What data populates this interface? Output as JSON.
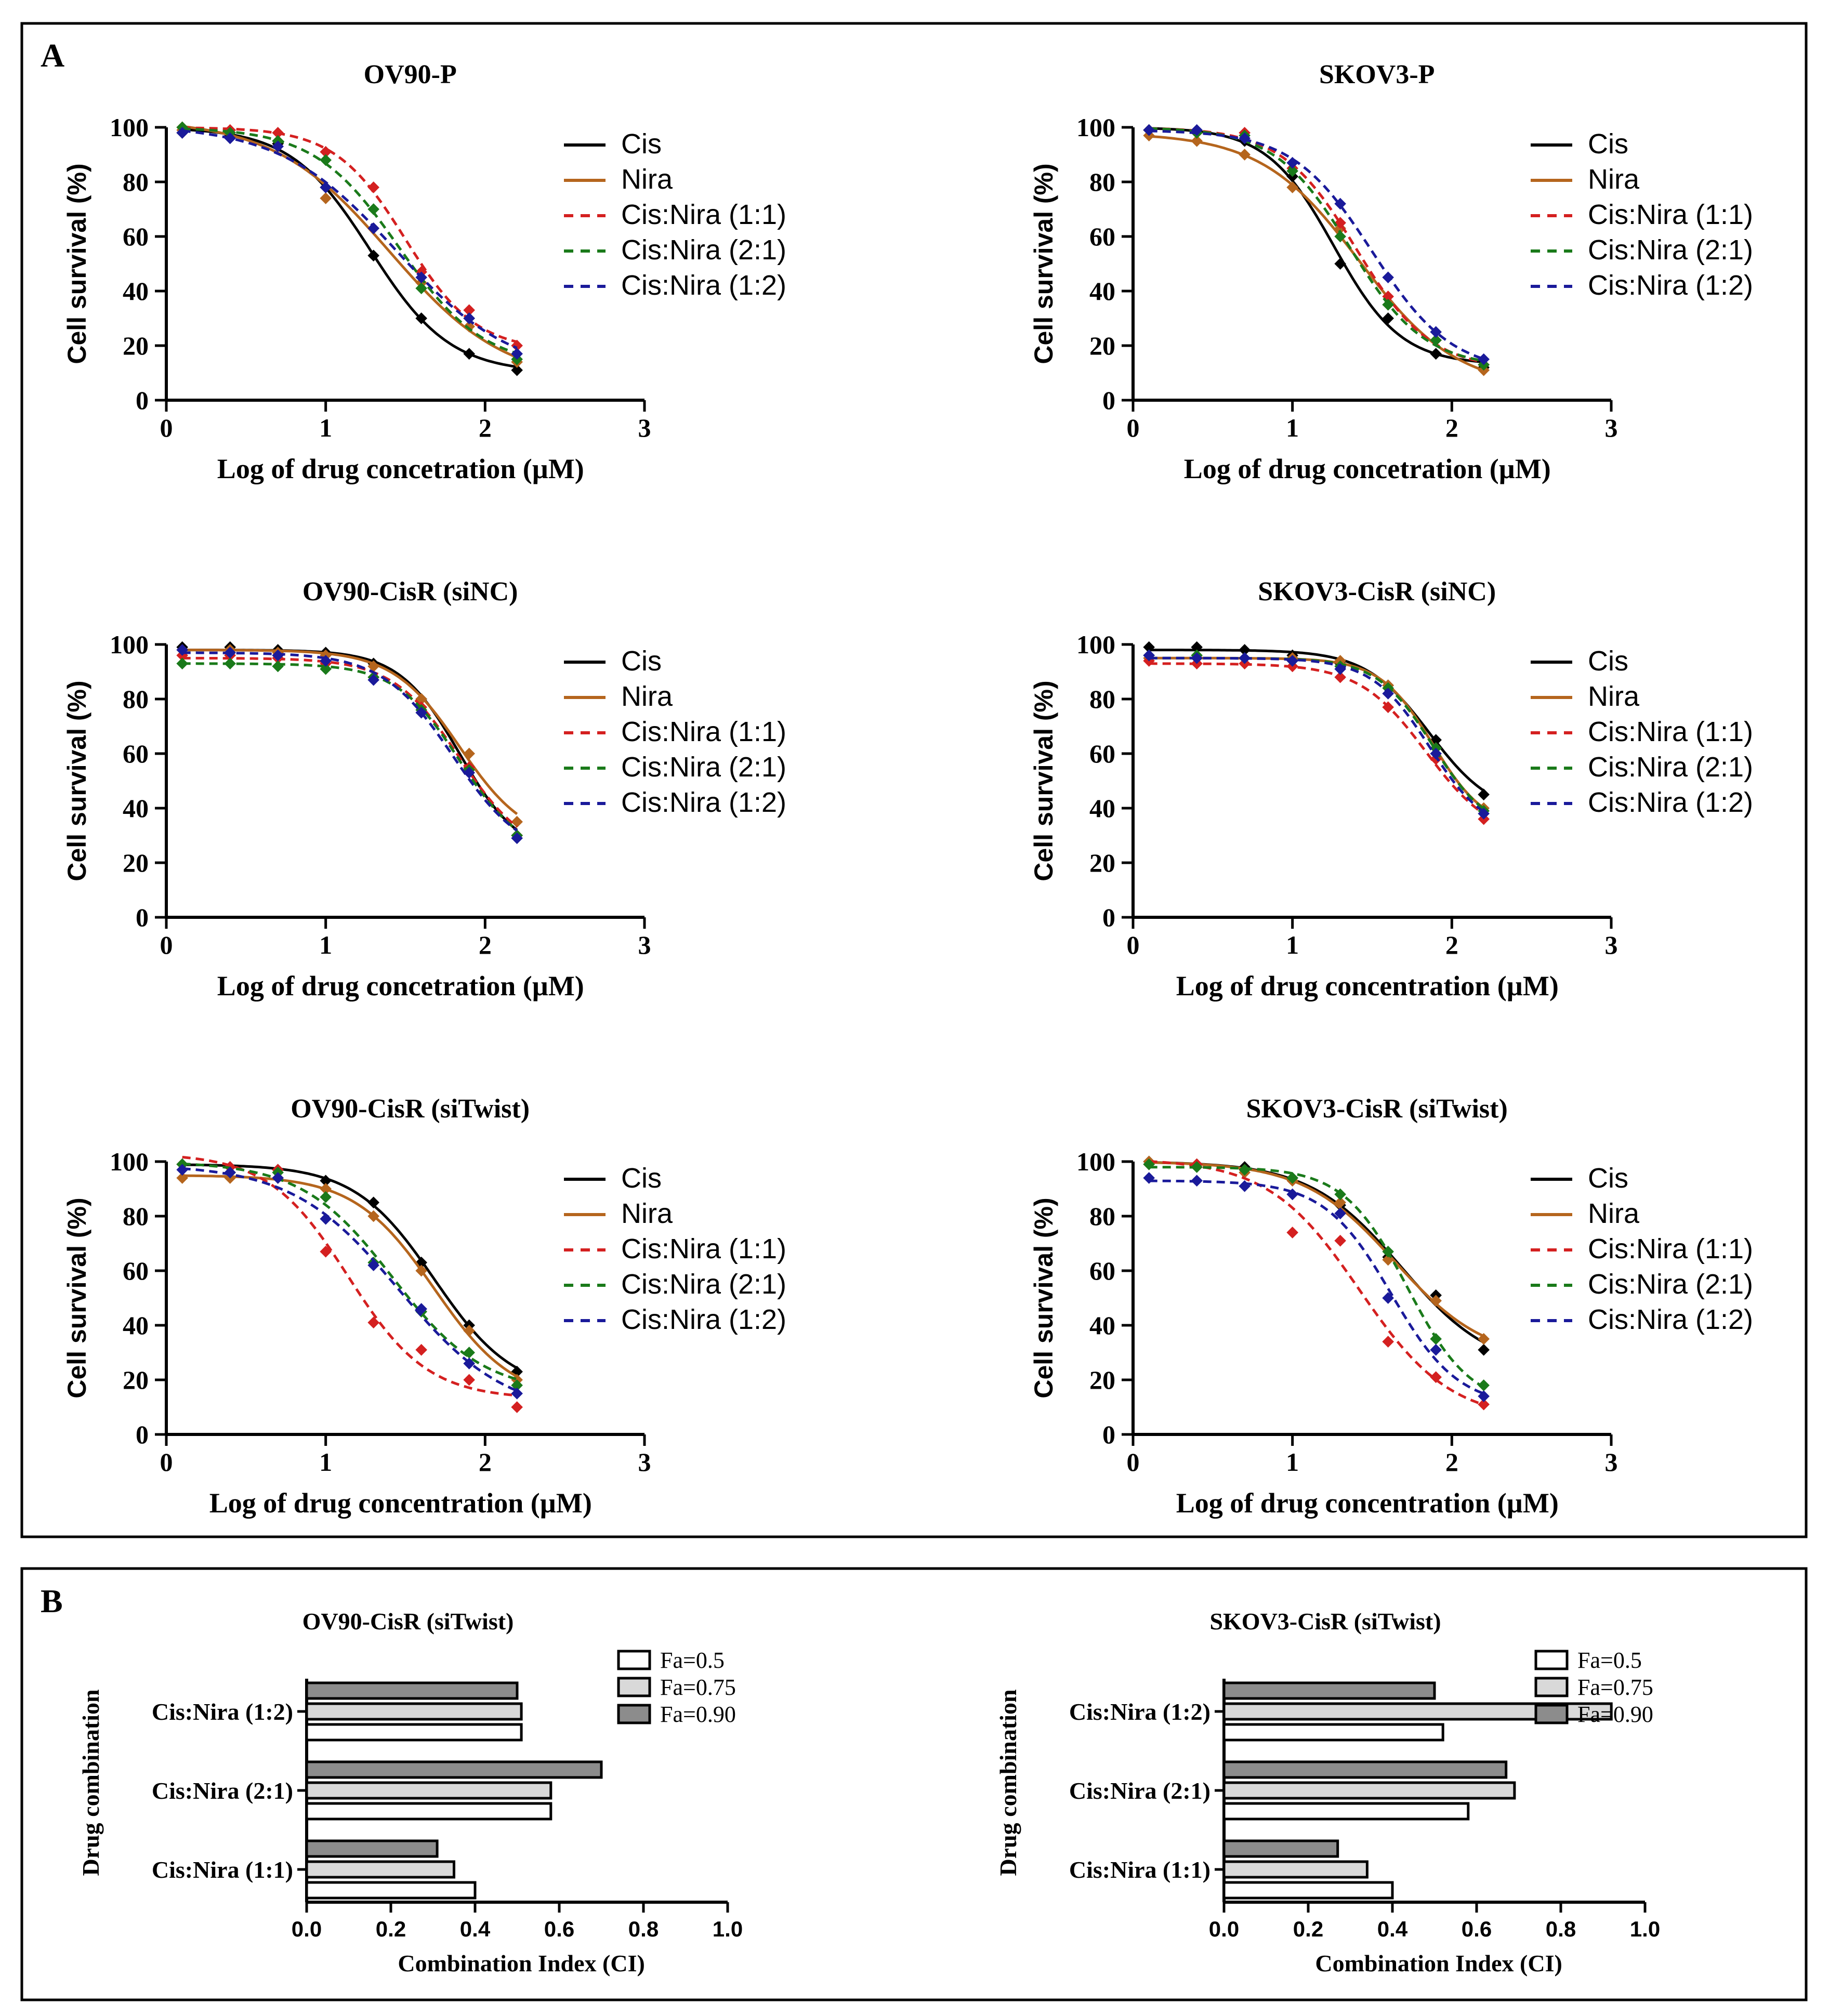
{
  "panel_labels": {
    "a": "A",
    "b": "B"
  },
  "colors": {
    "Cis": "#000000",
    "Nira": "#b5651d",
    "Cis:Nira (1:1)": "#d42020",
    "Cis:Nira (2:1)": "#1a7a1a",
    "Cis:Nira (1:2)": "#1a1a9a",
    "Fa=0.5": "#ffffff",
    "Fa=0.75": "#d9d9d9",
    "Fa=0.90": "#8c8c8c"
  },
  "chart_data": [
    {
      "type": "line",
      "panel": "A",
      "title": "OV90-P",
      "xlabel": "Log of  drug concetration (µM)",
      "ylabel": "Cell survival (%)",
      "xlim": [
        0,
        3
      ],
      "ylim": [
        0,
        100
      ],
      "xticks": [
        "0",
        "1",
        "2",
        "3"
      ],
      "yticks": [
        "0",
        "20",
        "40",
        "60",
        "80",
        "100"
      ],
      "x": [
        0.1,
        0.4,
        0.7,
        1.0,
        1.3,
        1.6,
        1.9,
        2.2
      ],
      "series": [
        {
          "name": "Cis",
          "style": "solid",
          "values": [
            98,
            97,
            94,
            78,
            53,
            30,
            17,
            11
          ]
        },
        {
          "name": "Nira",
          "style": "solid",
          "values": [
            99,
            98,
            95,
            74,
            63,
            43,
            27,
            14
          ]
        },
        {
          "name": "Cis:Nira (1:1)",
          "style": "dashed",
          "values": [
            100,
            99,
            98,
            91,
            78,
            47,
            33,
            20
          ]
        },
        {
          "name": "Cis:Nira (2:1)",
          "style": "dashed",
          "values": [
            100,
            98,
            95,
            88,
            70,
            41,
            30,
            15
          ]
        },
        {
          "name": "Cis:Nira (1:2)",
          "style": "dashed",
          "values": [
            98,
            96,
            93,
            78,
            63,
            45,
            30,
            17
          ]
        }
      ]
    },
    {
      "type": "line",
      "panel": "A",
      "title": "SKOV3-P",
      "xlabel": "Log of  drug concetration (µM)",
      "ylabel": "Cell survival (%)",
      "xlim": [
        0,
        3
      ],
      "ylim": [
        0,
        100
      ],
      "xticks": [
        "0",
        "1",
        "2",
        "3"
      ],
      "yticks": [
        "0",
        "20",
        "40",
        "60",
        "80",
        "100"
      ],
      "x": [
        0.1,
        0.4,
        0.7,
        1.0,
        1.3,
        1.6,
        1.9,
        2.2
      ],
      "series": [
        {
          "name": "Cis",
          "style": "solid",
          "values": [
            99,
            98,
            95,
            82,
            50,
            30,
            17,
            12
          ]
        },
        {
          "name": "Nira",
          "style": "solid",
          "values": [
            97,
            95,
            90,
            78,
            63,
            35,
            22,
            11
          ]
        },
        {
          "name": "Cis:Nira (1:1)",
          "style": "dashed",
          "values": [
            99,
            98,
            98,
            85,
            65,
            38,
            22,
            13
          ]
        },
        {
          "name": "Cis:Nira (2:1)",
          "style": "dashed",
          "values": [
            99,
            98,
            97,
            84,
            60,
            35,
            22,
            13
          ]
        },
        {
          "name": "Cis:Nira (1:2)",
          "style": "dashed",
          "values": [
            99,
            99,
            96,
            87,
            72,
            45,
            25,
            15
          ]
        }
      ]
    },
    {
      "type": "line",
      "panel": "A",
      "title": "OV90-CisR (siNC)",
      "xlabel": "Log of  drug concetration (µM)",
      "ylabel": "Cell survival (%)",
      "xlim": [
        0,
        3
      ],
      "ylim": [
        0,
        100
      ],
      "xticks": [
        "0",
        "1",
        "2",
        "3"
      ],
      "yticks": [
        "0",
        "20",
        "40",
        "60",
        "80",
        "100"
      ],
      "x": [
        0.1,
        0.4,
        0.7,
        1.0,
        1.3,
        1.6,
        1.9,
        2.2
      ],
      "series": [
        {
          "name": "Cis",
          "style": "solid",
          "values": [
            99,
            99,
            98,
            97,
            93,
            80,
            55,
            30
          ]
        },
        {
          "name": "Nira",
          "style": "solid",
          "values": [
            98,
            98,
            97,
            96,
            92,
            80,
            60,
            35
          ]
        },
        {
          "name": "Cis:Nira (1:1)",
          "style": "dashed",
          "values": [
            96,
            96,
            95,
            93,
            88,
            77,
            55,
            30
          ]
        },
        {
          "name": "Cis:Nira (2:1)",
          "style": "dashed",
          "values": [
            93,
            93,
            92,
            91,
            88,
            76,
            54,
            30
          ]
        },
        {
          "name": "Cis:Nira (1:2)",
          "style": "dashed",
          "values": [
            98,
            97,
            96,
            94,
            87,
            75,
            53,
            29
          ]
        }
      ]
    },
    {
      "type": "line",
      "panel": "A",
      "title": "SKOV3-CisR (siNC)",
      "xlabel": "Log of  drug concentration (µM)",
      "ylabel": "Cell survival (%)",
      "xlim": [
        0,
        3
      ],
      "ylim": [
        0,
        100
      ],
      "xticks": [
        "0",
        "1",
        "2",
        "3"
      ],
      "yticks": [
        "0",
        "20",
        "40",
        "60",
        "80",
        "100"
      ],
      "x": [
        0.1,
        0.4,
        0.7,
        1.0,
        1.3,
        1.6,
        1.9,
        2.2
      ],
      "series": [
        {
          "name": "Cis",
          "style": "solid",
          "values": [
            99,
            99,
            98,
            96,
            93,
            85,
            65,
            45
          ]
        },
        {
          "name": "Nira",
          "style": "solid",
          "values": [
            95,
            95,
            95,
            95,
            94,
            85,
            62,
            40
          ]
        },
        {
          "name": "Cis:Nira (1:1)",
          "style": "dashed",
          "values": [
            94,
            93,
            93,
            92,
            88,
            77,
            58,
            36
          ]
        },
        {
          "name": "Cis:Nira (2:1)",
          "style": "dashed",
          "values": [
            96,
            96,
            95,
            94,
            92,
            84,
            62,
            39
          ]
        },
        {
          "name": "Cis:Nira (1:2)",
          "style": "dashed",
          "values": [
            96,
            95,
            95,
            94,
            91,
            82,
            60,
            38
          ]
        }
      ]
    },
    {
      "type": "line",
      "panel": "A",
      "title": "OV90-CisR (siTwist)",
      "xlabel": "Log of  drug concentration (µM)",
      "ylabel": "Cell survival (%)",
      "xlim": [
        0,
        3
      ],
      "ylim": [
        0,
        100
      ],
      "xticks": [
        "0",
        "1",
        "2",
        "3"
      ],
      "yticks": [
        "0",
        "20",
        "40",
        "60",
        "80",
        "100"
      ],
      "x": [
        0.1,
        0.4,
        0.7,
        1.0,
        1.3,
        1.6,
        1.9,
        2.2
      ],
      "series": [
        {
          "name": "Cis",
          "style": "solid",
          "values": [
            99,
            98,
            97,
            93,
            85,
            63,
            40,
            23
          ]
        },
        {
          "name": "Nira",
          "style": "solid",
          "values": [
            94,
            94,
            94,
            90,
            80,
            60,
            38,
            20
          ]
        },
        {
          "name": "Cis:Nira (1:1)",
          "style": "dashed",
          "values": [
            99,
            98,
            97,
            67,
            41,
            31,
            20,
            10
          ]
        },
        {
          "name": "Cis:Nira (2:1)",
          "style": "dashed",
          "values": [
            99,
            96,
            96,
            87,
            63,
            45,
            30,
            18
          ]
        },
        {
          "name": "Cis:Nira (1:2)",
          "style": "dashed",
          "values": [
            97,
            96,
            94,
            79,
            62,
            46,
            26,
            15
          ]
        }
      ]
    },
    {
      "type": "line",
      "panel": "A",
      "title": "SKOV3-CisR (siTwist)",
      "xlabel": "Log of  drug concentration (µM)",
      "ylabel": "Cell survival (%)",
      "xlim": [
        0,
        3
      ],
      "ylim": [
        0,
        100
      ],
      "xticks": [
        "0",
        "1",
        "2",
        "3"
      ],
      "yticks": [
        "0",
        "20",
        "40",
        "60",
        "80",
        "100"
      ],
      "x": [
        0.1,
        0.4,
        0.7,
        1.0,
        1.3,
        1.6,
        1.9,
        2.2
      ],
      "series": [
        {
          "name": "Cis",
          "style": "solid",
          "values": [
            100,
            99,
            98,
            94,
            84,
            65,
            51,
            31
          ]
        },
        {
          "name": "Nira",
          "style": "solid",
          "values": [
            100,
            99,
            96,
            93,
            85,
            64,
            49,
            35
          ]
        },
        {
          "name": "Cis:Nira (1:1)",
          "style": "dashed",
          "values": [
            99,
            99,
            97,
            74,
            71,
            34,
            21,
            11
          ]
        },
        {
          "name": "Cis:Nira (2:1)",
          "style": "dashed",
          "values": [
            99,
            98,
            97,
            94,
            88,
            67,
            35,
            18
          ]
        },
        {
          "name": "Cis:Nira (1:2)",
          "style": "dashed",
          "values": [
            94,
            93,
            91,
            88,
            81,
            50,
            31,
            14
          ]
        }
      ]
    },
    {
      "type": "bar",
      "panel": "B",
      "orientation": "horizontal",
      "title": "OV90-CisR  (siTwist)",
      "xlabel": "Combination Index (CI)",
      "ylabel": "Drug combination",
      "xlim": [
        0,
        1.0
      ],
      "xticks": [
        "0.0",
        "0.2",
        "0.4",
        "0.6",
        "0.8",
        "1.0"
      ],
      "categories": [
        "Cis:Nira (1:2)",
        "Cis:Nira (2:1)",
        "Cis:Nira (1:1)"
      ],
      "series": [
        {
          "name": "Fa=0.5",
          "values": [
            0.51,
            0.58,
            0.4
          ]
        },
        {
          "name": "Fa=0.75",
          "values": [
            0.51,
            0.58,
            0.35
          ]
        },
        {
          "name": "Fa=0.90",
          "values": [
            0.5,
            0.7,
            0.31
          ]
        }
      ]
    },
    {
      "type": "bar",
      "panel": "B",
      "orientation": "horizontal",
      "title": "SKOV3-CisR  (siTwist)",
      "xlabel": "Combination Index (CI)",
      "ylabel": "Drug combination",
      "xlim": [
        0,
        1.0
      ],
      "xticks": [
        "0.0",
        "0.2",
        "0.4",
        "0.6",
        "0.8",
        "1.0"
      ],
      "categories": [
        "Cis:Nira (1:2)",
        "Cis:Nira (2:1)",
        "Cis:Nira (1:1)"
      ],
      "series": [
        {
          "name": "Fa=0.5",
          "values": [
            0.52,
            0.58,
            0.4
          ]
        },
        {
          "name": "Fa=0.75",
          "values": [
            0.92,
            0.69,
            0.34
          ]
        },
        {
          "name": "Fa=0.90",
          "values": [
            0.5,
            0.67,
            0.27
          ]
        }
      ]
    }
  ]
}
